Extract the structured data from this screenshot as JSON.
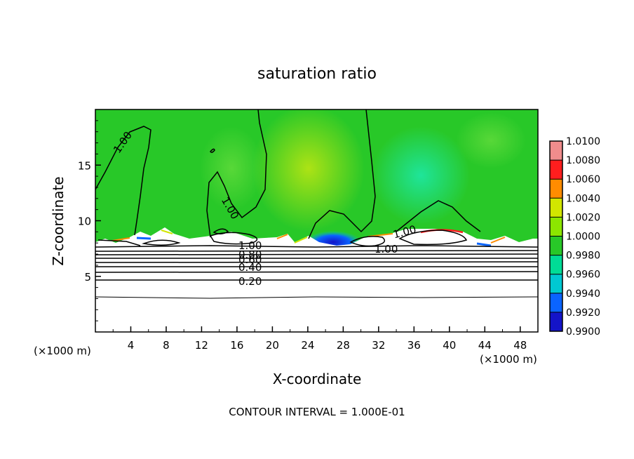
{
  "chart_data": {
    "type": "heatmap",
    "title": "saturation ratio",
    "xlabel": "X-coordinate",
    "ylabel": "Z-coordinate",
    "x_unit_left": "(×1000 m)",
    "x_unit_right": "(×1000 m)",
    "xlim": [
      0,
      50
    ],
    "ylim": [
      0,
      20
    ],
    "xticks": [
      4,
      8,
      12,
      16,
      20,
      24,
      28,
      32,
      36,
      40,
      44,
      48
    ],
    "xtick_labels": [
      "4",
      "8",
      "12",
      "16",
      "20",
      "24",
      "28",
      "32",
      "36",
      "40",
      "44",
      "48"
    ],
    "yticks": [
      5,
      10,
      15
    ],
    "ytick_labels": [
      "5",
      "10",
      "15"
    ],
    "colorbar": {
      "values": [
        0.99,
        0.992,
        0.994,
        0.996,
        0.998,
        1.0,
        1.002,
        1.004,
        1.006,
        1.008,
        1.01
      ],
      "labels": [
        "0.9900",
        "0.9920",
        "0.9940",
        "0.9960",
        "0.9980",
        "1.0000",
        "1.0020",
        "1.0040",
        "1.0060",
        "1.0080",
        "1.0100"
      ],
      "colors": [
        "#7a00a8",
        "#1414c8",
        "#0a64ff",
        "#00c8d2",
        "#00dc96",
        "#28c828",
        "#8ce600",
        "#d2e600",
        "#ff8c00",
        "#ff1e1e",
        "#f08c8c"
      ]
    },
    "background_value": 1.0,
    "contour_labels": [
      "1.00",
      "1.00",
      "1.00",
      "1.00",
      "1.00",
      "0.80",
      "0.60",
      "0.40",
      "0.20"
    ],
    "contour_interval_text": "CONTOUR INTERVAL = 1.000E-01",
    "grid": false
  }
}
